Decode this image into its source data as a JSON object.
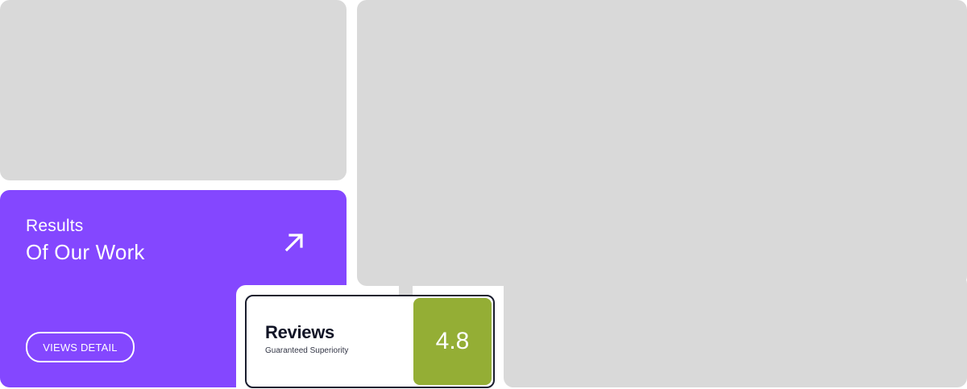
{
  "results_card": {
    "title_line_1": "Results",
    "title_line_2": "Of Our Work",
    "button_label": "VIEWS DETAIL",
    "accent_color": "#8447ff",
    "icon": "arrow-up-right-icon"
  },
  "reviews_card": {
    "title": "Reviews",
    "subtitle": "Guaranteed Superiority",
    "rating": "4.8",
    "rating_color": "#94ae35"
  },
  "placeholders": {
    "color": "#d9d9d9"
  }
}
